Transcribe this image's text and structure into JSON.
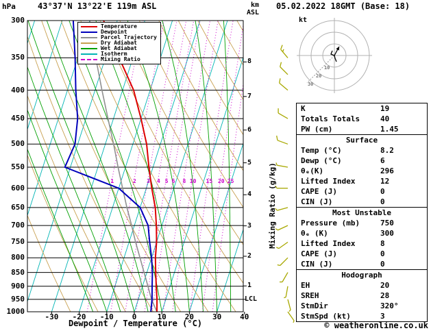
{
  "header": {
    "pressure_unit": "hPa",
    "station": "43°37'N 13°22'E 119m ASL",
    "altitude_unit_line1": "km",
    "altitude_unit_line2": "ASL",
    "datetime": "05.02.2022 18GMT (Base: 18)"
  },
  "legend": {
    "items": [
      {
        "label": "Temperature",
        "color": "#dd0000",
        "style": "solid"
      },
      {
        "label": "Dewpoint",
        "color": "#0000bb",
        "style": "solid"
      },
      {
        "label": "Parcel Trajectory",
        "color": "#909090",
        "style": "solid"
      },
      {
        "label": "Dry Adiabat",
        "color": "#c8a050",
        "style": "solid"
      },
      {
        "label": "Wet Adiabat",
        "color": "#00a000",
        "style": "solid"
      },
      {
        "label": "Isotherm",
        "color": "#00b4b4",
        "style": "solid"
      },
      {
        "label": "Mixing Ratio",
        "color": "#cc00cc",
        "style": "dashed"
      }
    ]
  },
  "axes": {
    "pressure_ticks": [
      300,
      350,
      400,
      450,
      500,
      550,
      600,
      650,
      700,
      750,
      800,
      850,
      900,
      950,
      1000
    ],
    "temp_ticks": [
      -30,
      -20,
      -10,
      0,
      10,
      20,
      30,
      40
    ],
    "km_ticks": [
      8,
      7,
      6,
      5,
      4,
      3,
      2,
      1
    ],
    "lcl_label": "LCL",
    "xlabel": "Dewpoint / Temperature (°C)",
    "mixing_ratio_axis_label": "Mixing Ratio (g/kg)",
    "mixing_ratio_values": [
      1,
      2,
      3,
      4,
      5,
      6,
      8,
      10,
      15,
      20,
      25
    ]
  },
  "hodograph": {
    "unit": "kt",
    "ring_labels": [
      "10",
      "20",
      "30"
    ],
    "trace": [
      [
        3,
        9
      ],
      [
        1,
        4
      ],
      [
        0,
        0
      ],
      [
        -5,
        -2
      ],
      [
        -3,
        -7
      ]
    ],
    "storm_arrow": [
      7,
      -13
    ]
  },
  "table": {
    "rows": [
      {
        "type": "kv",
        "label": "K",
        "value": "19"
      },
      {
        "type": "kv",
        "label": "Totals Totals",
        "value": "40"
      },
      {
        "type": "kv",
        "label": "PW (cm)",
        "value": "1.45"
      },
      {
        "type": "section",
        "label": "Surface"
      },
      {
        "type": "kv",
        "label": "Temp (°C)",
        "value": "8.2"
      },
      {
        "type": "kv",
        "label": "Dewp (°C)",
        "value": "6"
      },
      {
        "type": "kv",
        "label": "θₑ(K)",
        "value": "296"
      },
      {
        "type": "kv",
        "label": "Lifted Index",
        "value": "12"
      },
      {
        "type": "kv",
        "label": "CAPE (J)",
        "value": "0"
      },
      {
        "type": "kv",
        "label": "CIN (J)",
        "value": "0"
      },
      {
        "type": "section",
        "label": "Most Unstable"
      },
      {
        "type": "kv",
        "label": "Pressure (mb)",
        "value": "750"
      },
      {
        "type": "kv",
        "label": "θₑ (K)",
        "value": "300"
      },
      {
        "type": "kv",
        "label": "Lifted Index",
        "value": "8"
      },
      {
        "type": "kv",
        "label": "CAPE (J)",
        "value": "0"
      },
      {
        "type": "kv",
        "label": "CIN (J)",
        "value": "0"
      },
      {
        "type": "section",
        "label": "Hodograph"
      },
      {
        "type": "kv",
        "label": "EH",
        "value": "20"
      },
      {
        "type": "kv",
        "label": "SREH",
        "value": "28"
      },
      {
        "type": "kv",
        "label": "StmDir",
        "value": "320°"
      },
      {
        "type": "kv",
        "label": "StmSpd (kt)",
        "value": "3"
      }
    ]
  },
  "footer": {
    "copyright": "© weatheronline.co.uk"
  },
  "colors": {
    "isotherm": "#00b4b4",
    "dry_adiabat": "#c8a050",
    "wet_adiabat": "#00a000",
    "mixing_ratio": "#cc00cc",
    "temperature": "#dd0000",
    "dewpoint": "#0000bb",
    "parcel": "#909090",
    "grid": "#000000",
    "wind_barb": "#a8a800",
    "hodo_ring": "#b0b0b0"
  },
  "chart_data": {
    "type": "line",
    "variant": "skew-t-log-p",
    "title": "43°37'N 13°22'E 119m ASL",
    "x_axis": {
      "label": "Dewpoint / Temperature (°C)",
      "ticks": [
        -30,
        -20,
        -10,
        0,
        10,
        20,
        30,
        40
      ]
    },
    "y_axis": {
      "label": "hPa",
      "scale": "log",
      "range": [
        300,
        1000
      ],
      "ticks": [
        300,
        350,
        400,
        450,
        500,
        550,
        600,
        650,
        700,
        750,
        800,
        850,
        900,
        950,
        1000
      ]
    },
    "pressure_hPa": [
      1000,
      950,
      900,
      850,
      800,
      750,
      700,
      650,
      600,
      550,
      500,
      450,
      400,
      350,
      300
    ],
    "series": [
      {
        "name": "Temperature",
        "color": "#dd0000",
        "values_C": [
          8.2,
          6.8,
          5.0,
          3.2,
          1.4,
          0.0,
          -2.0,
          -4.5,
          -8.0,
          -11.5,
          -15.0,
          -20.0,
          -26.0,
          -35.0,
          -45.0
        ]
      },
      {
        "name": "Dewpoint",
        "color": "#0000bb",
        "values_C": [
          6,
          5,
          3.5,
          2,
          0,
          -2.5,
          -5,
          -10,
          -20,
          -42,
          -41,
          -43,
          -47,
          -51,
          -56
        ]
      },
      {
        "name": "Parcel Trajectory",
        "color": "#909090",
        "values_C": [
          8.2,
          4.8,
          2.0,
          -1.0,
          -4.2,
          -7.6,
          -11.0,
          -14.8,
          -18.6,
          -22.7,
          -27.0,
          -32.0,
          -37.5,
          -43.5,
          -50.0
        ]
      }
    ],
    "lcl_pressure_hPa": 950,
    "wind_barbs": [
      {
        "p": 350,
        "dir": 320,
        "spd": 15
      },
      {
        "p": 375,
        "dir": 315,
        "spd": 10
      },
      {
        "p": 400,
        "dir": 310,
        "spd": 10
      },
      {
        "p": 450,
        "dir": 300,
        "spd": 10
      },
      {
        "p": 500,
        "dir": 290,
        "spd": 10
      },
      {
        "p": 550,
        "dir": 280,
        "spd": 5
      },
      {
        "p": 600,
        "dir": 270,
        "spd": 5
      },
      {
        "p": 650,
        "dir": 255,
        "spd": 5
      },
      {
        "p": 700,
        "dir": 245,
        "spd": 5
      },
      {
        "p": 750,
        "dir": 235,
        "spd": 5
      },
      {
        "p": 800,
        "dir": 225,
        "spd": 5
      },
      {
        "p": 850,
        "dir": 210,
        "spd": 5
      },
      {
        "p": 900,
        "dir": 190,
        "spd": 3
      },
      {
        "p": 950,
        "dir": 165,
        "spd": 3
      },
      {
        "p": 1000,
        "dir": 145,
        "spd": 3
      }
    ]
  }
}
